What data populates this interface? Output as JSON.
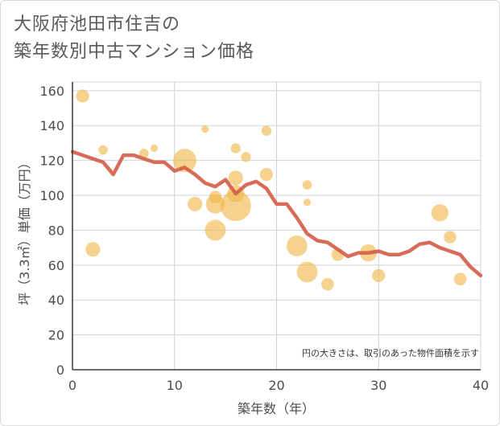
{
  "title_line1": "大阪府池田市住吉の",
  "title_line2": "築年数別中古マンション価格",
  "note": "円の大きさは、取引のあった物件面積を示す",
  "colors": {
    "bubble": "#f0b74a",
    "line": "#d4604b",
    "grid": "#c9d4de",
    "axis": "#3a3a3a"
  },
  "chart_data": {
    "type": "scatter",
    "xlabel": "築年数（年）",
    "ylabel": "坪（3.3㎡）単価（万円）",
    "xlim": [
      0,
      40
    ],
    "ylim": [
      0,
      165
    ],
    "x_ticks": [
      0,
      10,
      20,
      30,
      40
    ],
    "y_ticks": [
      0,
      20,
      40,
      60,
      80,
      100,
      120,
      140,
      160
    ],
    "grid": true,
    "bubbles": [
      {
        "x": 1,
        "y": 157,
        "size": 0.32
      },
      {
        "x": 2,
        "y": 69,
        "size": 0.38
      },
      {
        "x": 3,
        "y": 126,
        "size": 0.18
      },
      {
        "x": 7,
        "y": 124,
        "size": 0.18
      },
      {
        "x": 8,
        "y": 127,
        "size": 0.1
      },
      {
        "x": 11,
        "y": 120,
        "size": 0.72
      },
      {
        "x": 12,
        "y": 95,
        "size": 0.38
      },
      {
        "x": 13,
        "y": 138,
        "size": 0.1
      },
      {
        "x": 14,
        "y": 99,
        "size": 0.3
      },
      {
        "x": 14,
        "y": 95,
        "size": 0.55
      },
      {
        "x": 14,
        "y": 80,
        "size": 0.62
      },
      {
        "x": 16,
        "y": 127,
        "size": 0.2
      },
      {
        "x": 16,
        "y": 110,
        "size": 0.38
      },
      {
        "x": 16,
        "y": 101,
        "size": 0.48
      },
      {
        "x": 16,
        "y": 94,
        "size": 1.0
      },
      {
        "x": 17,
        "y": 122,
        "size": 0.2
      },
      {
        "x": 19,
        "y": 137,
        "size": 0.2
      },
      {
        "x": 19,
        "y": 112,
        "size": 0.32
      },
      {
        "x": 22,
        "y": 71,
        "size": 0.62
      },
      {
        "x": 23,
        "y": 106,
        "size": 0.18
      },
      {
        "x": 23,
        "y": 96,
        "size": 0.1
      },
      {
        "x": 23,
        "y": 56,
        "size": 0.62
      },
      {
        "x": 25,
        "y": 49,
        "size": 0.3
      },
      {
        "x": 26,
        "y": 66,
        "size": 0.3
      },
      {
        "x": 29,
        "y": 67,
        "size": 0.48
      },
      {
        "x": 30,
        "y": 54,
        "size": 0.32
      },
      {
        "x": 36,
        "y": 90,
        "size": 0.48
      },
      {
        "x": 37,
        "y": 76,
        "size": 0.3
      },
      {
        "x": 38,
        "y": 52,
        "size": 0.3
      }
    ],
    "line": {
      "x": [
        0,
        1,
        2,
        3,
        4,
        5,
        6,
        7,
        8,
        9,
        10,
        11,
        12,
        13,
        14,
        15,
        16,
        17,
        18,
        19,
        20,
        21,
        22,
        23,
        24,
        25,
        26,
        27,
        28,
        29,
        30,
        31,
        32,
        33,
        34,
        35,
        36,
        37,
        38,
        39,
        40
      ],
      "y": [
        125,
        123,
        121,
        119,
        112,
        123,
        123,
        121,
        119,
        119,
        114,
        116,
        112,
        107,
        105,
        109,
        101,
        106,
        108,
        104,
        95,
        95,
        87,
        78,
        74,
        73,
        69,
        65,
        67,
        67,
        68,
        66,
        66,
        68,
        72,
        73,
        70,
        68,
        66,
        59,
        54
      ]
    }
  }
}
